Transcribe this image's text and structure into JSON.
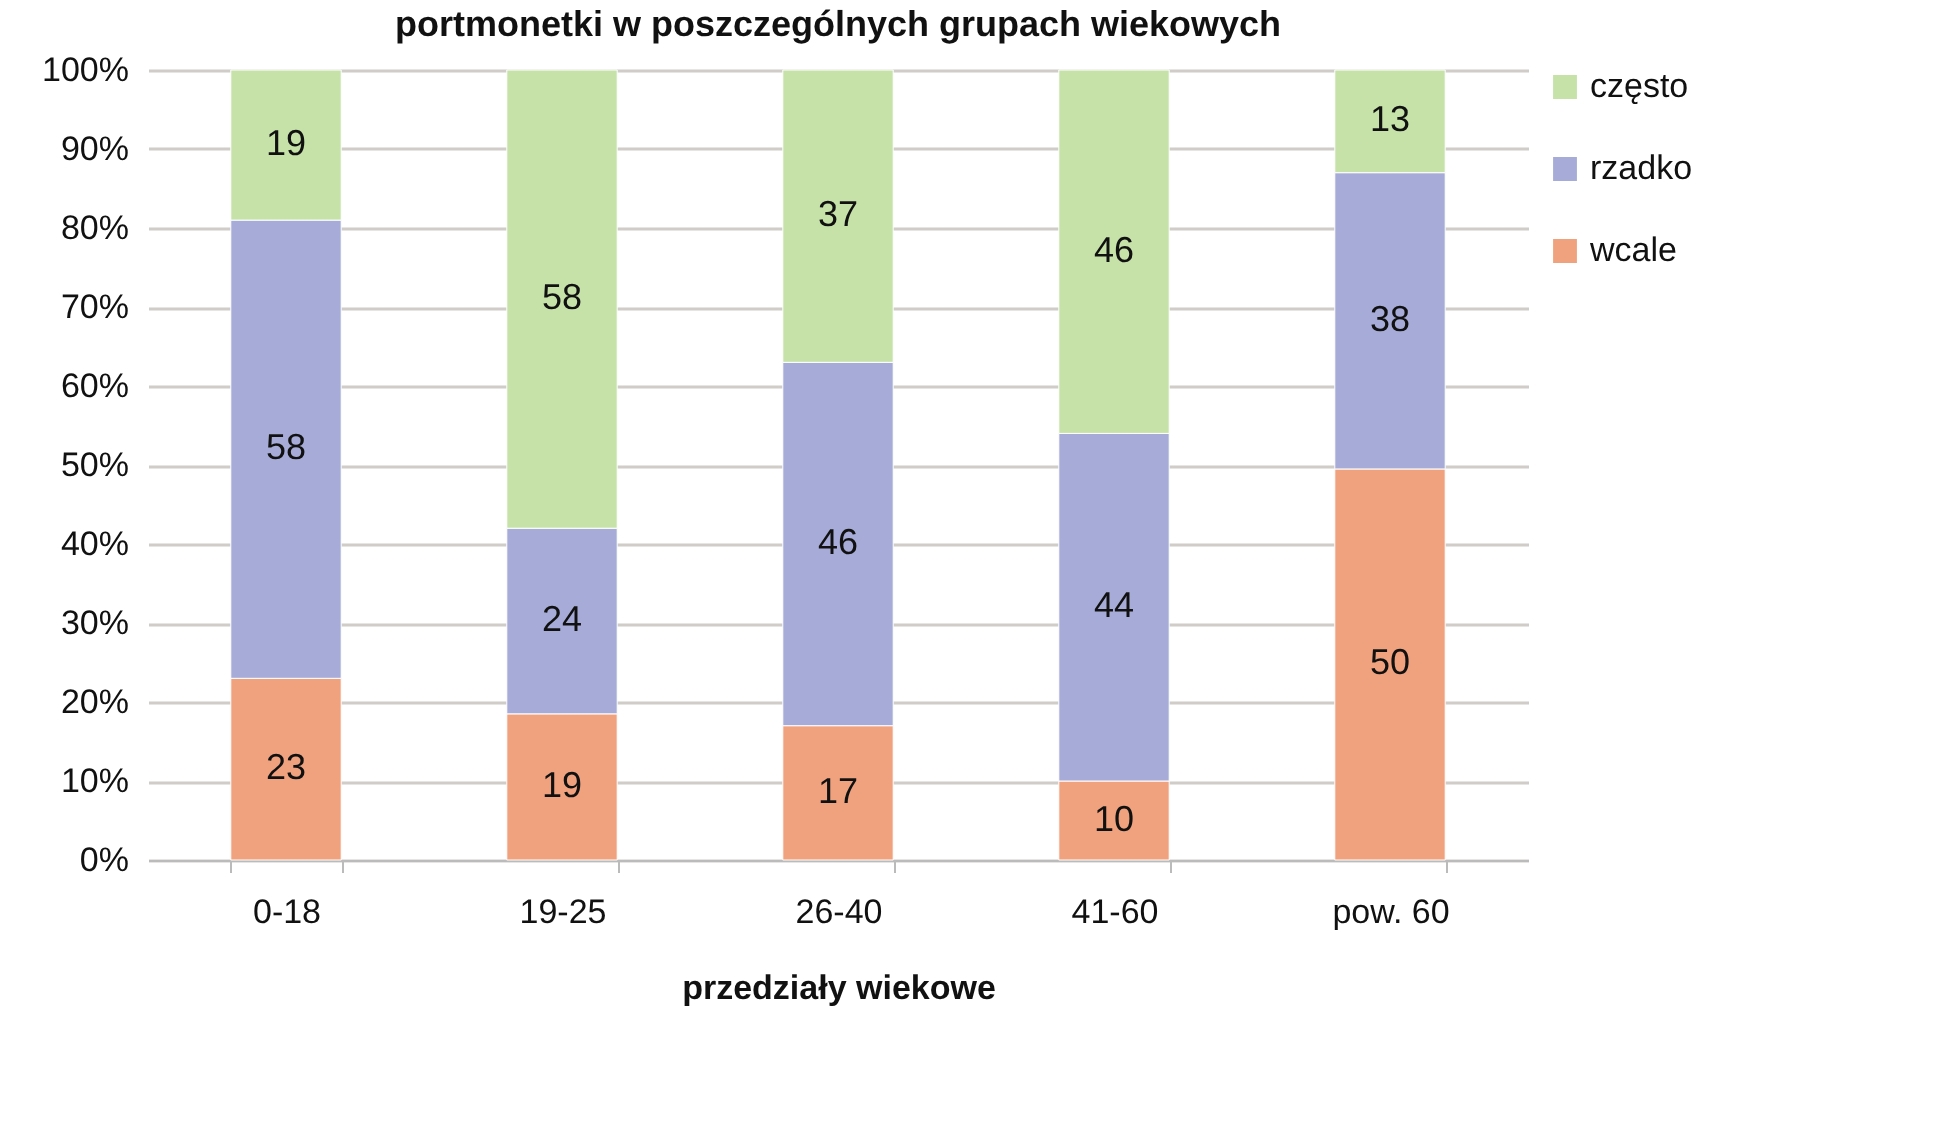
{
  "chart_data": {
    "type": "bar",
    "stacked": true,
    "title": "portmonetki w poszczególnych grupach wiekowych",
    "xlabel": "przedziały wiekowe",
    "categories": [
      "0-18",
      "19-25",
      "26-40",
      "41-60",
      "pow. 60"
    ],
    "series": [
      {
        "name": "wcale",
        "color": "#f0a27e",
        "values": [
          23,
          18.5,
          17,
          10,
          49.5
        ],
        "value_labels": [
          "23",
          "19",
          "17",
          "10",
          "50"
        ]
      },
      {
        "name": "rzadko",
        "color": "#a6abd8",
        "values": [
          58,
          23.5,
          46,
          44,
          37.5
        ],
        "value_labels": [
          "58",
          "24",
          "46",
          "44",
          "38"
        ]
      },
      {
        "name": "często",
        "color": "#c6e2a8",
        "values": [
          19,
          58,
          37,
          46,
          13
        ],
        "value_labels": [
          "19",
          "58",
          "37",
          "46",
          "13"
        ]
      }
    ],
    "ylim": [
      0,
      100
    ],
    "yticks": [
      {
        "value": 0,
        "label": "0%"
      },
      {
        "value": 10,
        "label": "10%"
      },
      {
        "value": 20,
        "label": "20%"
      },
      {
        "value": 30,
        "label": "30%"
      },
      {
        "value": 40,
        "label": "40%"
      },
      {
        "value": 50,
        "label": "50%"
      },
      {
        "value": 60,
        "label": "60%"
      },
      {
        "value": 70,
        "label": "70%"
      },
      {
        "value": 80,
        "label": "80%"
      },
      {
        "value": 90,
        "label": "90%"
      },
      {
        "value": 100,
        "label": "100%"
      }
    ],
    "grid": "y",
    "legend": "right"
  }
}
